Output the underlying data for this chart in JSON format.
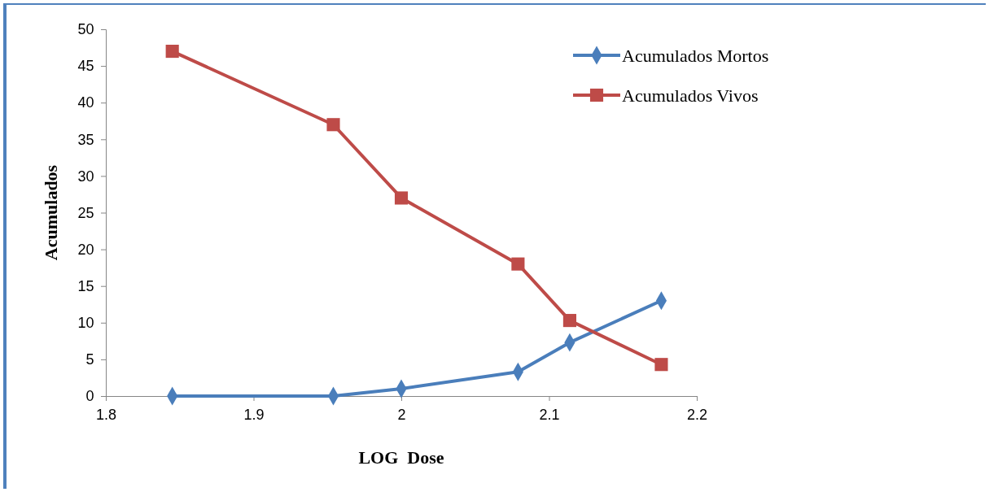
{
  "chart_data": {
    "type": "line",
    "xlabel": "LOG  Dose",
    "ylabel": "Acumulados",
    "xlim": [
      1.8,
      2.2
    ],
    "xticks": [
      1.8,
      1.9,
      {
        "value": 2,
        "label": "2"
      },
      2.1,
      2.2
    ],
    "ylim": [
      0,
      50
    ],
    "yticks": [
      0,
      5,
      10,
      15,
      20,
      25,
      30,
      35,
      40,
      45,
      50
    ],
    "x": [
      1.845,
      1.954,
      2.0,
      2.079,
      2.114,
      2.176
    ],
    "series": [
      {
        "name": "Acumulados Mortos",
        "color": "#4a7ebb",
        "marker": "diamond",
        "values": [
          0,
          0,
          1,
          3.3,
          7.3,
          13
        ]
      },
      {
        "name": "Acumulados Vivos",
        "color": "#be4b48",
        "marker": "square",
        "values": [
          47,
          37,
          27,
          18,
          10.3,
          4.3
        ]
      }
    ],
    "legend": "top right",
    "grid": false,
    "line_style": "solid"
  }
}
